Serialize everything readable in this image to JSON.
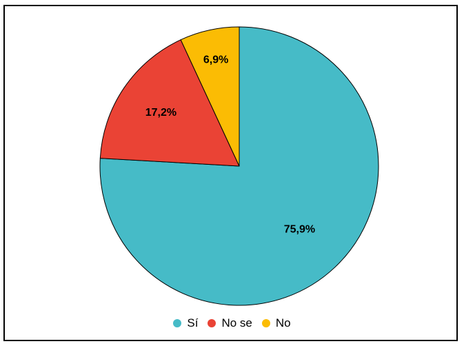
{
  "chart_data": {
    "type": "pie",
    "title": "",
    "categories": [
      "Sí",
      "No se",
      "No"
    ],
    "values": [
      75.9,
      17.2,
      6.9
    ],
    "labels": [
      "75,9%",
      "17,2%",
      "6,9%"
    ],
    "colors": [
      "#46BBC7",
      "#EA4335",
      "#FBBC04"
    ],
    "legend_position": "bottom"
  }
}
